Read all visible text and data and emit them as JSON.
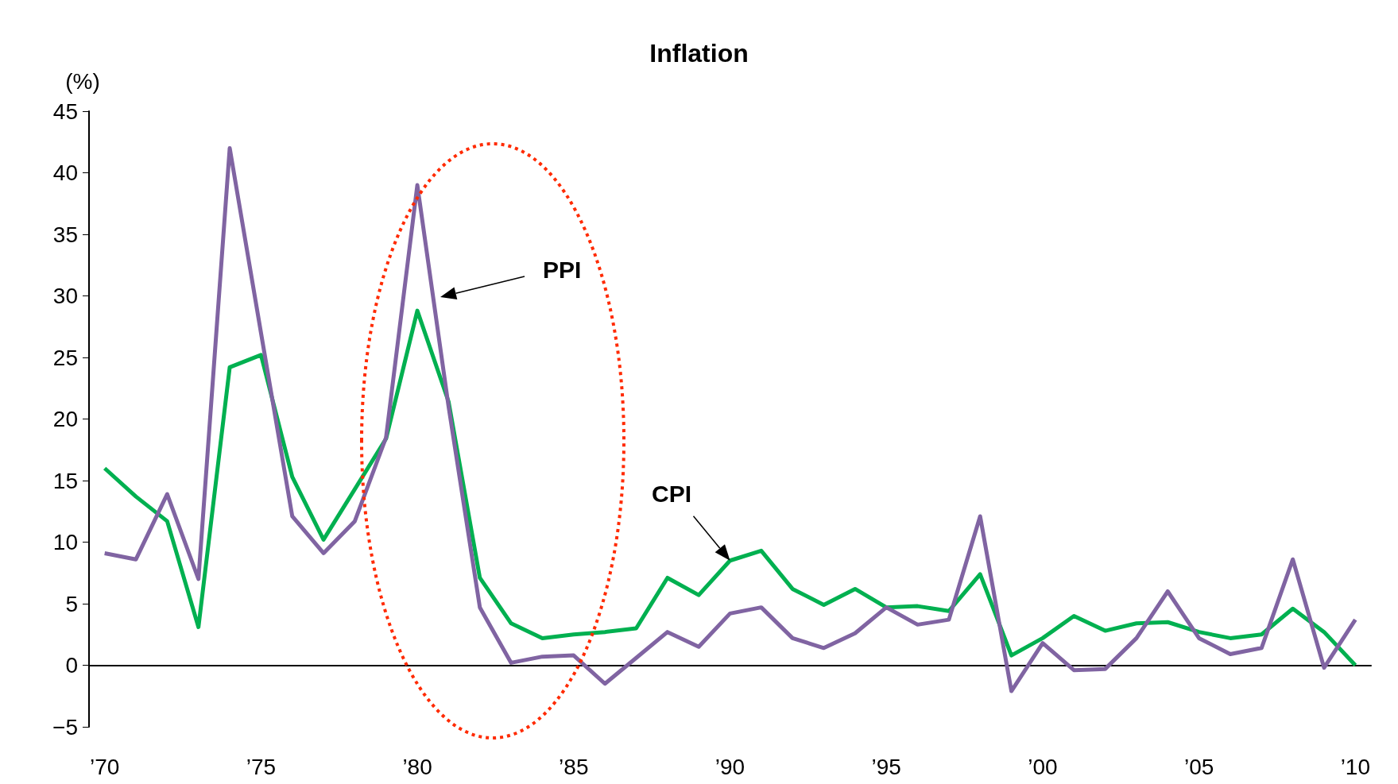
{
  "chart_data": {
    "type": "line",
    "title": "Inflation",
    "ylabel": "(%)",
    "categories": [
      "’70",
      null,
      null,
      null,
      null,
      "’75",
      null,
      null,
      null,
      null,
      "’80",
      null,
      null,
      null,
      null,
      "’85",
      null,
      null,
      null,
      null,
      "’90",
      null,
      null,
      null,
      null,
      "’95",
      null,
      null,
      null,
      null,
      "’00",
      null,
      null,
      null,
      null,
      "’05",
      null,
      null,
      null,
      null,
      "’10"
    ],
    "series": [
      {
        "color": "#00b050",
        "values": [
          16.0,
          13.7,
          11.7,
          3.1,
          24.2,
          25.2,
          15.3,
          10.2,
          14.3,
          18.4,
          28.8,
          21.4,
          7.1,
          3.4,
          2.2,
          2.5,
          2.7,
          3.0,
          7.1,
          5.7,
          8.5,
          9.3,
          6.2,
          4.9,
          6.2,
          4.7,
          4.8,
          4.4,
          7.4,
          0.8,
          2.2,
          4.0,
          2.8,
          3.4,
          3.5,
          2.7,
          2.2,
          2.5,
          4.6,
          2.7,
          0.0
        ]
      },
      {
        "color": "#8064a2",
        "values": [
          9.1,
          8.6,
          13.9,
          7.0,
          42.0,
          27.0,
          12.1,
          9.1,
          11.7,
          18.5,
          39.0,
          21.0,
          4.7,
          0.2,
          0.7,
          0.8,
          -1.5,
          0.6,
          2.7,
          1.5,
          4.2,
          4.7,
          2.2,
          1.4,
          2.6,
          4.7,
          3.3,
          3.7,
          12.1,
          -2.1,
          1.8,
          -0.4,
          -0.3,
          2.2,
          6.0,
          2.2,
          0.9,
          1.4,
          8.6,
          -0.2,
          3.7
        ]
      }
    ],
    "ylim": [
      -5,
      45
    ],
    "yticks": [
      -5,
      0,
      5,
      10,
      15,
      20,
      25,
      30,
      35,
      40,
      45
    ],
    "annotations": [
      "PPI",
      {
        "text": "CPI",
        "x": "’90",
        "y": 8.5
      }
    ],
    "marker": "none",
    "line_style": "solid"
  }
}
